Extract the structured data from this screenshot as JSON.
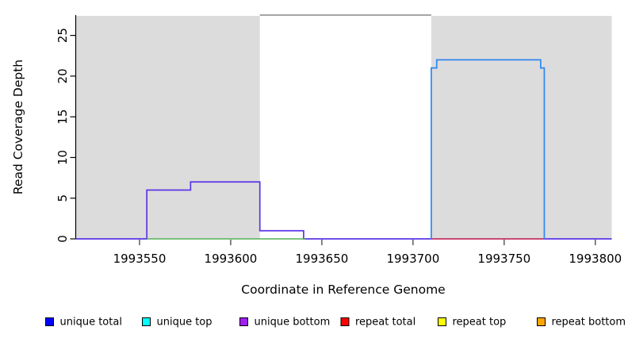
{
  "figure": {
    "background": "#ffffff",
    "plot_background": "#ffffff",
    "axis_color": "#000000"
  },
  "chart_data": {
    "type": "line",
    "subtype": "step-coverage-plot",
    "title": "",
    "xlabel": "Coordinate in Reference Genome",
    "ylabel": "Read Coverage Depth",
    "xlim": [
      1993515,
      1993809
    ],
    "ylim": [
      0,
      27.5
    ],
    "grid": false,
    "legend_position": "bottom",
    "x_ticks": [
      {
        "value": 1993550,
        "label": "1993550"
      },
      {
        "value": 1993600,
        "label": "1993600"
      },
      {
        "value": 1993650,
        "label": "1993650"
      },
      {
        "value": 1993700,
        "label": "1993700"
      },
      {
        "value": 1993750,
        "label": "1993750"
      },
      {
        "value": 1993800,
        "label": "1993800"
      }
    ],
    "y_ticks": [
      {
        "value": 0,
        "label": "0"
      },
      {
        "value": 5,
        "label": "5"
      },
      {
        "value": 10,
        "label": "10"
      },
      {
        "value": 15,
        "label": "15"
      },
      {
        "value": 20,
        "label": "20"
      },
      {
        "value": 25,
        "label": "25"
      }
    ],
    "shaded_regions": [
      {
        "name": "repeat-region-left",
        "x1": 1993515,
        "x2": 1993616,
        "color": "#dcdcdc"
      },
      {
        "name": "repeat-region-right",
        "x1": 1993710,
        "x2": 1993809,
        "color": "#dcdcdc"
      }
    ],
    "region_top_line": {
      "name": "unique-region-top-line",
      "x1": 1993616,
      "x2": 1993710,
      "y": 27.5,
      "color": "#888888"
    },
    "series": [
      {
        "name": "unique bottom coverage (overlaps unique total)",
        "color": "#5b35e8",
        "line_width": 1.7,
        "segments": [
          [
            1993515,
            1993554,
            0
          ],
          [
            1993554,
            1993578,
            6
          ],
          [
            1993578,
            1993616,
            7
          ],
          [
            1993616,
            1993640,
            1
          ],
          [
            1993640,
            1993809,
            0
          ]
        ]
      },
      {
        "name": "green baseline segment",
        "color": "#55b055",
        "line_width": 1.4,
        "segments": [
          [
            1993554,
            1993641,
            0
          ]
        ]
      },
      {
        "name": "repeat total baseline",
        "color": "#e0404e",
        "line_width": 1.4,
        "segments": [
          [
            1993710,
            1993772,
            0
          ]
        ]
      },
      {
        "name": "unique top coverage (overlaps unique total)",
        "color": "#2f86f0",
        "line_width": 1.7,
        "segments": [
          [
            1993710,
            1993710,
            0
          ],
          [
            1993710,
            1993713,
            21
          ],
          [
            1993713,
            1993770,
            22
          ],
          [
            1993770,
            1993772,
            21
          ],
          [
            1993772,
            1993772,
            0
          ]
        ]
      }
    ],
    "legend": [
      {
        "label": "unique total",
        "color": "#0000ff"
      },
      {
        "label": "unique top",
        "color": "#00ffff"
      },
      {
        "label": "unique bottom",
        "color": "#a020f0"
      },
      {
        "label": "repeat total",
        "color": "#ff0000"
      },
      {
        "label": "repeat top",
        "color": "#ffff00"
      },
      {
        "label": "repeat bottom",
        "color": "#ffa500"
      }
    ]
  }
}
